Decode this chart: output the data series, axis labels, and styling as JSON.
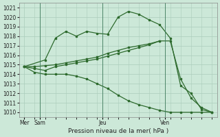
{
  "xlabel": "Pression niveau de la mer( hPa )",
  "bg_color": "#cce8d8",
  "grid_color": "#aaccbb",
  "line_color": "#2d6a2d",
  "ylim": [
    1009.5,
    1021.5
  ],
  "yticks": [
    1010,
    1011,
    1012,
    1013,
    1014,
    1015,
    1016,
    1017,
    1018,
    1019,
    1020,
    1021
  ],
  "xlim": [
    -0.5,
    18.5
  ],
  "vline_x": [
    1.5,
    7.5,
    13.5
  ],
  "x_tick_positions": [
    0,
    1.5,
    7.5,
    13.5
  ],
  "x_tick_labels": [
    "Mer",
    "Sam",
    "Jeu",
    "Ven"
  ],
  "series1_x": [
    0,
    2,
    3,
    4,
    5,
    6,
    7,
    8,
    9,
    10,
    11,
    12,
    13,
    14,
    15,
    16,
    17,
    18
  ],
  "series1_y": [
    1014.8,
    1015.5,
    1017.8,
    1018.5,
    1018.0,
    1018.5,
    1018.3,
    1018.2,
    1020.0,
    1020.6,
    1020.3,
    1019.7,
    1019.2,
    1017.8,
    1012.8,
    1012.0,
    1010.3,
    1010.0
  ],
  "series2_x": [
    0,
    1,
    2,
    3,
    4,
    5,
    6,
    7,
    8,
    9,
    10,
    11,
    12,
    13,
    14,
    15,
    16,
    17,
    18
  ],
  "series2_y": [
    1014.8,
    1014.8,
    1014.9,
    1015.0,
    1015.2,
    1015.4,
    1015.6,
    1015.8,
    1016.2,
    1016.5,
    1016.8,
    1017.0,
    1017.2,
    1017.5,
    1017.5,
    1013.5,
    1011.5,
    1010.5,
    1010.0
  ],
  "series3_x": [
    0,
    1,
    2,
    3,
    4,
    5,
    6,
    7,
    8,
    9,
    10,
    11,
    12,
    13
  ],
  "series3_y": [
    1014.8,
    1014.6,
    1014.4,
    1014.8,
    1015.0,
    1015.2,
    1015.4,
    1015.6,
    1015.9,
    1016.2,
    1016.5,
    1016.8,
    1017.1,
    1017.5
  ],
  "series4_x": [
    0,
    1,
    2,
    3,
    4,
    5,
    6,
    7,
    8,
    9,
    10,
    11,
    12,
    13,
    14,
    15,
    16,
    17,
    18
  ],
  "series4_y": [
    1014.8,
    1014.2,
    1014.0,
    1014.0,
    1014.0,
    1013.8,
    1013.5,
    1013.0,
    1012.5,
    1011.8,
    1011.2,
    1010.8,
    1010.5,
    1010.2,
    1010.0,
    1010.0,
    1010.0,
    1010.0,
    1010.0
  ]
}
